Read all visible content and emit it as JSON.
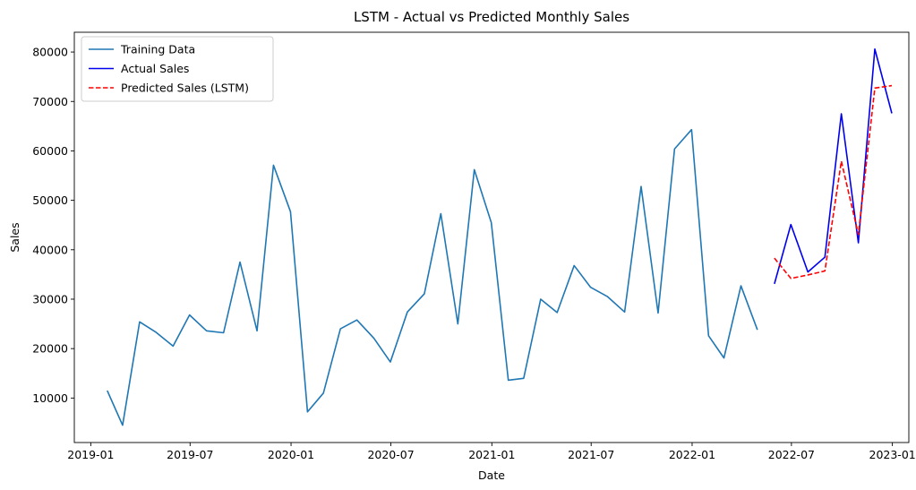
{
  "chart_data": {
    "type": "line",
    "title": "LSTM - Actual vs Predicted Monthly Sales",
    "xlabel": "Date",
    "ylabel": "Sales",
    "grid": false,
    "legend_position": "top-left",
    "xlim": [
      "2018-12-02",
      "2023-01-31"
    ],
    "ylim": [
      1000,
      84000
    ],
    "x_ticks": [
      "2019-01",
      "2019-07",
      "2020-01",
      "2020-07",
      "2021-01",
      "2021-07",
      "2022-01",
      "2022-07",
      "2023-01"
    ],
    "y_ticks": [
      10000,
      20000,
      30000,
      40000,
      50000,
      60000,
      70000,
      80000
    ],
    "series": [
      {
        "name": "Training Data",
        "color": "#1f77b4",
        "style": "solid",
        "x": [
          "2019-01-31",
          "2019-02-28",
          "2019-03-31",
          "2019-04-30",
          "2019-05-31",
          "2019-06-30",
          "2019-07-31",
          "2019-08-31",
          "2019-09-30",
          "2019-10-31",
          "2019-11-30",
          "2019-12-31",
          "2020-01-31",
          "2020-02-29",
          "2020-03-31",
          "2020-04-30",
          "2020-05-31",
          "2020-06-30",
          "2020-07-31",
          "2020-08-31",
          "2020-09-30",
          "2020-10-31",
          "2020-11-30",
          "2020-12-31",
          "2021-01-31",
          "2021-02-28",
          "2021-03-31",
          "2021-04-30",
          "2021-05-31",
          "2021-06-30",
          "2021-07-31",
          "2021-08-31",
          "2021-09-30",
          "2021-10-31",
          "2021-11-30",
          "2021-12-31",
          "2022-01-31",
          "2022-02-28",
          "2022-03-31",
          "2022-04-30"
        ],
        "values": [
          11500,
          4500,
          25400,
          23300,
          20500,
          26800,
          23600,
          23200,
          37500,
          23600,
          57100,
          47700,
          7200,
          11000,
          24000,
          25800,
          22100,
          17300,
          27400,
          31100,
          47300,
          25000,
          56200,
          45500,
          13600,
          14000,
          30000,
          27300,
          36800,
          32400,
          30500,
          27400,
          52800,
          27200,
          60400,
          64300,
          22600,
          18100,
          32700,
          23800
        ]
      },
      {
        "name": "Actual Sales",
        "color": "#0000ee",
        "style": "solid",
        "x": [
          "2022-05-31",
          "2022-06-30",
          "2022-07-31",
          "2022-08-31",
          "2022-09-30",
          "2022-10-31",
          "2022-11-30",
          "2022-12-31"
        ],
        "values": [
          33100,
          45100,
          35500,
          38500,
          67500,
          41400,
          80600,
          67600
        ]
      },
      {
        "name": "Predicted Sales (LSTM)",
        "color": "#ff0000",
        "style": "dashed",
        "x": [
          "2022-05-31",
          "2022-06-30",
          "2022-07-31",
          "2022-08-31",
          "2022-09-30",
          "2022-10-31",
          "2022-11-30",
          "2022-12-31"
        ],
        "values": [
          38300,
          34200,
          34900,
          35700,
          57900,
          43100,
          72700,
          73200
        ]
      }
    ]
  }
}
